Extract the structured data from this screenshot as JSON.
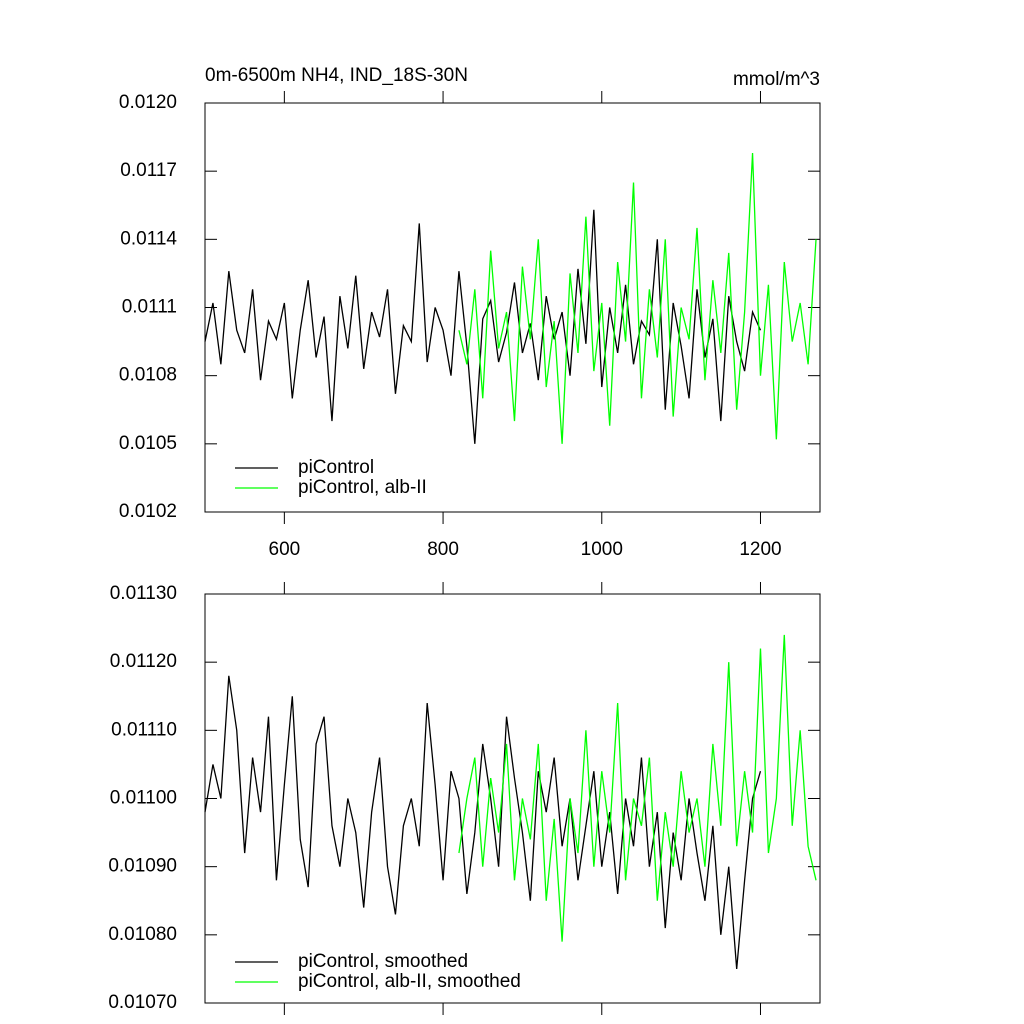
{
  "chart_data": [
    {
      "type": "line",
      "title": "0m-6500m NH4, IND_18S-30N",
      "units": "mmol/m^3",
      "xlim": [
        500,
        1275
      ],
      "xticks": [
        600,
        800,
        1000,
        1200
      ],
      "xtick_labels": true,
      "ylim": [
        0.0102,
        0.012
      ],
      "yticks": [
        0.0102,
        0.0105,
        0.0108,
        0.0111,
        0.0114,
        0.0117,
        {
          "value": 0.012,
          "label": "0.0120"
        }
      ],
      "series": [
        {
          "name": "piControl",
          "color": "#000000",
          "x": [
            500,
            510,
            520,
            530,
            540,
            550,
            560,
            570,
            580,
            590,
            600,
            610,
            620,
            630,
            640,
            650,
            660,
            670,
            680,
            690,
            700,
            710,
            720,
            730,
            740,
            750,
            760,
            770,
            780,
            790,
            800,
            810,
            820,
            830,
            840,
            850,
            860,
            870,
            880,
            890,
            900,
            910,
            920,
            930,
            940,
            950,
            960,
            970,
            980,
            990,
            1000,
            1010,
            1020,
            1030,
            1040,
            1050,
            1060,
            1070,
            1080,
            1090,
            1100,
            1110,
            1120,
            1130,
            1140,
            1150,
            1160,
            1170,
            1180,
            1190,
            1200
          ],
          "values": [
            0.01095,
            0.01112,
            0.01085,
            0.01126,
            0.011,
            0.0109,
            0.01118,
            0.01078,
            0.01104,
            0.01096,
            0.01112,
            0.0107,
            0.011,
            0.01122,
            0.01088,
            0.01106,
            0.0106,
            0.01115,
            0.01092,
            0.01124,
            0.01083,
            0.01108,
            0.01097,
            0.01118,
            0.01072,
            0.01102,
            0.01095,
            0.01147,
            0.01086,
            0.0111,
            0.011,
            0.0108,
            0.01126,
            0.01093,
            0.0105,
            0.01105,
            0.01113,
            0.01086,
            0.01099,
            0.01121,
            0.0109,
            0.01103,
            0.01078,
            0.01115,
            0.01096,
            0.01108,
            0.0108,
            0.01127,
            0.01094,
            0.01153,
            0.01075,
            0.0111,
            0.0109,
            0.0112,
            0.01085,
            0.01104,
            0.01098,
            0.0114,
            0.01065,
            0.01112,
            0.01093,
            0.0107,
            0.01118,
            0.01088,
            0.01105,
            0.0106,
            0.01115,
            0.01095,
            0.01082,
            0.01108,
            0.011
          ]
        },
        {
          "name": "piControl, alb-II",
          "color": "#00ff00",
          "x": [
            820,
            830,
            840,
            850,
            860,
            870,
            880,
            890,
            900,
            910,
            920,
            930,
            940,
            950,
            960,
            970,
            980,
            990,
            1000,
            1010,
            1020,
            1030,
            1040,
            1050,
            1060,
            1070,
            1080,
            1090,
            1100,
            1110,
            1120,
            1130,
            1140,
            1150,
            1160,
            1170,
            1180,
            1190,
            1200,
            1210,
            1220,
            1230,
            1240,
            1250,
            1260,
            1270
          ],
          "values": [
            0.011,
            0.01085,
            0.01118,
            0.0107,
            0.01135,
            0.01092,
            0.01108,
            0.0106,
            0.01128,
            0.01096,
            0.0114,
            0.01075,
            0.01104,
            0.0105,
            0.01125,
            0.0109,
            0.0115,
            0.01082,
            0.01112,
            0.01058,
            0.0113,
            0.01095,
            0.01165,
            0.0107,
            0.01118,
            0.01088,
            0.0114,
            0.01062,
            0.0111,
            0.01096,
            0.01145,
            0.01078,
            0.01122,
            0.0109,
            0.01134,
            0.01065,
            0.01108,
            0.01178,
            0.0108,
            0.0112,
            0.01052,
            0.0113,
            0.01095,
            0.01112,
            0.01085,
            0.0114
          ]
        }
      ]
    },
    {
      "type": "line",
      "xlim": [
        500,
        1275
      ],
      "xticks": [
        600,
        800,
        1000,
        1200
      ],
      "xtick_labels": false,
      "ylim": [
        0.0107,
        0.0113
      ],
      "yticks": [
        {
          "value": 0.0107,
          "label": "0.01070"
        },
        {
          "value": 0.0108,
          "label": "0.01080"
        },
        {
          "value": 0.0109,
          "label": "0.01090"
        },
        {
          "value": 0.011,
          "label": "0.01100"
        },
        {
          "value": 0.0111,
          "label": "0.01110"
        },
        {
          "value": 0.0112,
          "label": "0.01120"
        },
        {
          "value": 0.0113,
          "label": "0.01130"
        }
      ],
      "series": [
        {
          "name": "piControl, smoothed",
          "color": "#000000",
          "x": [
            500,
            510,
            520,
            530,
            540,
            550,
            560,
            570,
            580,
            590,
            600,
            610,
            620,
            630,
            640,
            650,
            660,
            670,
            680,
            690,
            700,
            710,
            720,
            730,
            740,
            750,
            760,
            770,
            780,
            790,
            800,
            810,
            820,
            830,
            840,
            850,
            860,
            870,
            880,
            890,
            900,
            910,
            920,
            930,
            940,
            950,
            960,
            970,
            980,
            990,
            1000,
            1010,
            1020,
            1030,
            1040,
            1050,
            1060,
            1070,
            1080,
            1090,
            1100,
            1110,
            1120,
            1130,
            1140,
            1150,
            1160,
            1170,
            1180,
            1190,
            1200
          ],
          "values": [
            0.01098,
            0.01105,
            0.011,
            0.01118,
            0.0111,
            0.01092,
            0.01106,
            0.01098,
            0.01112,
            0.01088,
            0.01102,
            0.01115,
            0.01094,
            0.01087,
            0.01108,
            0.01112,
            0.01096,
            0.0109,
            0.011,
            0.01095,
            0.01084,
            0.01098,
            0.01106,
            0.0109,
            0.01083,
            0.01096,
            0.011,
            0.01093,
            0.01114,
            0.01102,
            0.01088,
            0.01104,
            0.011,
            0.01086,
            0.01095,
            0.01108,
            0.011,
            0.0109,
            0.01112,
            0.01103,
            0.01095,
            0.01085,
            0.01104,
            0.01098,
            0.01106,
            0.01093,
            0.011,
            0.01088,
            0.01096,
            0.01104,
            0.0109,
            0.01098,
            0.01086,
            0.011,
            0.01093,
            0.01106,
            0.0109,
            0.01098,
            0.01081,
            0.01095,
            0.01088,
            0.011,
            0.01092,
            0.01085,
            0.01096,
            0.0108,
            0.0109,
            0.01075,
            0.01088,
            0.011,
            0.01104
          ]
        },
        {
          "name": "piControl, alb-II, smoothed",
          "color": "#00ff00",
          "x": [
            820,
            830,
            840,
            850,
            860,
            870,
            880,
            890,
            900,
            910,
            920,
            930,
            940,
            950,
            960,
            970,
            980,
            990,
            1000,
            1010,
            1020,
            1030,
            1040,
            1050,
            1060,
            1070,
            1080,
            1090,
            1100,
            1110,
            1120,
            1130,
            1140,
            1150,
            1160,
            1170,
            1180,
            1190,
            1200,
            1210,
            1220,
            1230,
            1240,
            1250,
            1260,
            1270
          ],
          "values": [
            0.01092,
            0.011,
            0.01106,
            0.0109,
            0.01103,
            0.01095,
            0.01108,
            0.01088,
            0.011,
            0.01094,
            0.01108,
            0.01085,
            0.01097,
            0.01079,
            0.011,
            0.01092,
            0.0111,
            0.0109,
            0.01104,
            0.01095,
            0.01114,
            0.01088,
            0.011,
            0.01096,
            0.01106,
            0.01085,
            0.01098,
            0.0109,
            0.01104,
            0.01095,
            0.011,
            0.0109,
            0.01108,
            0.01096,
            0.0112,
            0.01093,
            0.01104,
            0.01095,
            0.01122,
            0.01092,
            0.011,
            0.01124,
            0.01096,
            0.0111,
            0.01093,
            0.01088
          ]
        }
      ]
    }
  ]
}
